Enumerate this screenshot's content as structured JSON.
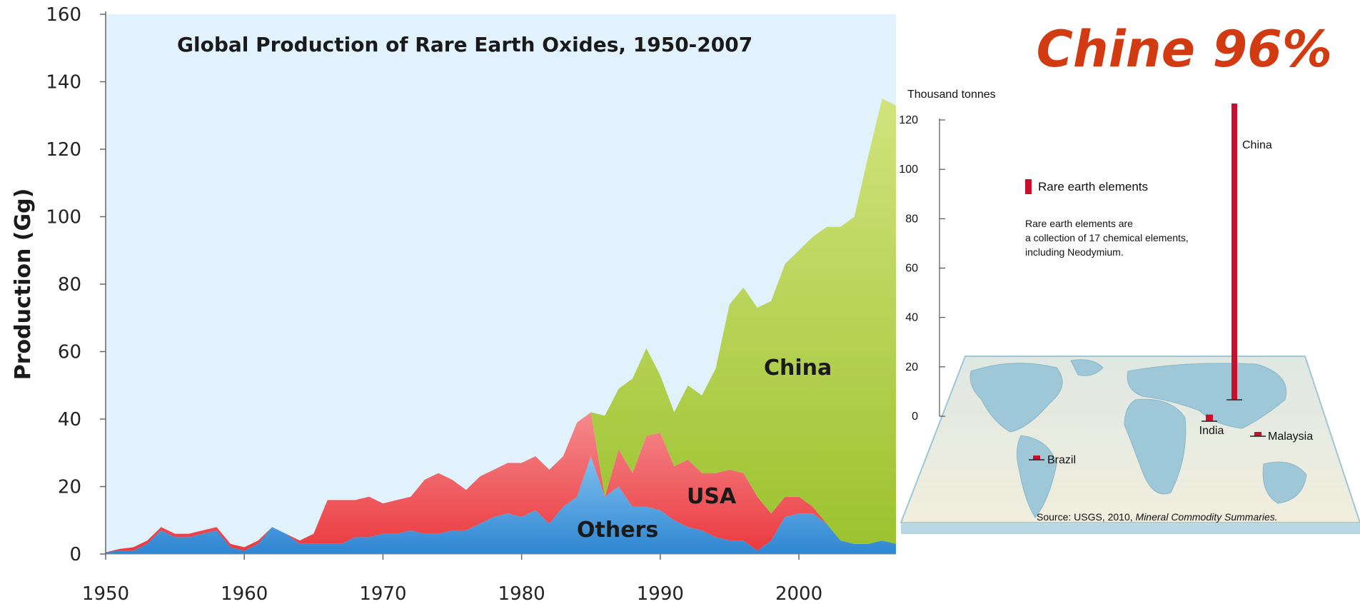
{
  "headline": "Chine 96%",
  "colors": {
    "plot_bg": "#e1f2fd",
    "others": "#2f86d1",
    "usa": "#ea3a3f",
    "china": "#9bc22d",
    "bar": "#c8102e",
    "headline": "#d23a12"
  },
  "chart_data": [
    {
      "type": "area",
      "title": "Global Production of Rare Earth Oxides, 1950-2007",
      "xlabel": "",
      "ylabel": "Production (Gg)",
      "stacked": true,
      "xlim": [
        1950,
        2007
      ],
      "ylim": [
        0,
        160
      ],
      "x_ticks": [
        1950,
        1960,
        1970,
        1980,
        1990,
        2000
      ],
      "y_ticks": [
        0,
        20,
        40,
        60,
        80,
        100,
        120,
        140,
        160
      ],
      "x": [
        1950,
        1951,
        1952,
        1953,
        1954,
        1955,
        1956,
        1957,
        1958,
        1959,
        1960,
        1961,
        1962,
        1963,
        1964,
        1965,
        1966,
        1967,
        1968,
        1969,
        1970,
        1971,
        1972,
        1973,
        1974,
        1975,
        1976,
        1977,
        1978,
        1979,
        1980,
        1981,
        1982,
        1983,
        1984,
        1985,
        1986,
        1987,
        1988,
        1989,
        1990,
        1991,
        1992,
        1993,
        1994,
        1995,
        1996,
        1997,
        1998,
        1999,
        2000,
        2001,
        2002,
        2003,
        2004,
        2005,
        2006,
        2007
      ],
      "series": [
        {
          "name": "Others",
          "values": [
            0.5,
            1,
            1,
            3,
            7,
            5,
            5,
            6,
            7,
            2,
            1,
            3,
            8,
            6,
            3,
            3,
            3,
            3,
            5,
            5,
            6,
            6,
            7,
            6,
            6,
            7,
            7,
            9,
            11,
            12,
            11,
            13,
            9,
            14,
            17,
            29,
            17,
            20,
            14,
            14,
            13,
            10,
            8,
            7,
            5,
            4,
            4,
            1,
            4,
            11,
            12,
            12,
            9,
            4,
            3,
            3,
            4,
            3
          ]
        },
        {
          "name": "USA",
          "values": [
            0,
            0.5,
            1,
            1,
            1,
            1,
            1,
            1,
            1,
            1,
            1,
            1,
            0,
            0,
            1,
            3,
            13,
            13,
            11,
            12,
            9,
            10,
            10,
            16,
            18,
            15,
            12,
            14,
            14,
            15,
            16,
            16,
            16,
            15,
            22,
            13,
            0,
            11,
            10,
            21,
            23,
            16,
            20,
            17,
            19,
            21,
            20,
            16,
            8,
            6,
            5,
            2,
            0,
            0,
            0,
            0,
            0,
            0
          ]
        },
        {
          "name": "China",
          "values": [
            0,
            0,
            0,
            0,
            0,
            0,
            0,
            0,
            0,
            0,
            0,
            0,
            0,
            0,
            0,
            0,
            0,
            0,
            0,
            0,
            0,
            0,
            0,
            0,
            0,
            0,
            0,
            0,
            0,
            0,
            0,
            0,
            0,
            0,
            0,
            0,
            24,
            18,
            28,
            26,
            17,
            16,
            22,
            23,
            31,
            49,
            55,
            56,
            63,
            69,
            73,
            80,
            88,
            93,
            97,
            115,
            131,
            130
          ]
        }
      ],
      "area_labels": [
        "China",
        "USA",
        "Others"
      ]
    },
    {
      "type": "bar",
      "title": "",
      "ylabel": "Thousand tonnes",
      "ylim": [
        0,
        120
      ],
      "y_ticks": [
        0,
        20,
        40,
        60,
        80,
        100,
        120
      ],
      "categories": [
        "China",
        "India",
        "Malaysia",
        "Brazil"
      ],
      "values": [
        120,
        2.7,
        0.4,
        0.6
      ],
      "legend": "Rare earth elements",
      "note_lines": [
        "Rare earth elements are",
        "a collection of 17 chemical elements,",
        "including Neodymium."
      ],
      "source": "Source: USGS, 2010,",
      "source_italic": "Mineral Commodity Summaries."
    }
  ]
}
